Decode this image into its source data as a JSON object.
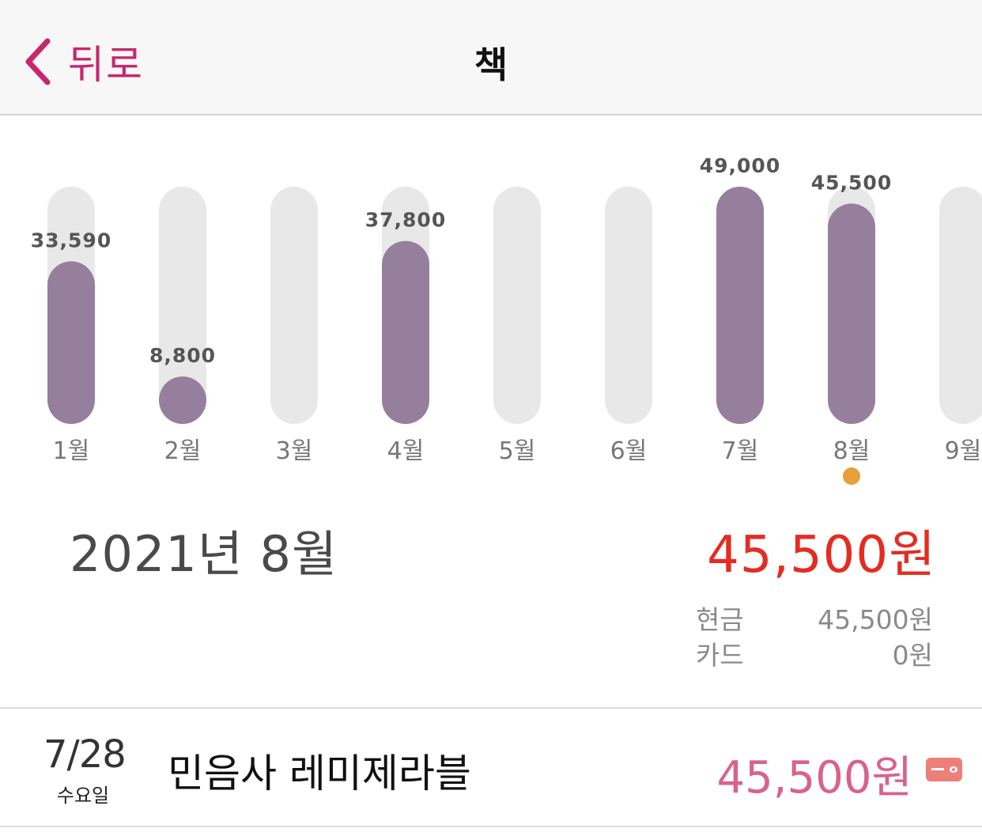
{
  "nav": {
    "back_label": "뒤로",
    "title": "책",
    "accent_color": "#c8266e"
  },
  "chart_data": {
    "type": "bar",
    "categories": [
      "1월",
      "2월",
      "3월",
      "4월",
      "5월",
      "6월",
      "7월",
      "8월",
      "9월"
    ],
    "values": [
      33590,
      8800,
      0,
      37800,
      0,
      0,
      49000,
      45500,
      0
    ],
    "value_labels": [
      "33,590",
      "8,800",
      "",
      "37,800",
      "",
      "",
      "49,000",
      "45,500",
      ""
    ],
    "ylim": [
      0,
      49000
    ],
    "selected_index": 7,
    "bar_color": "#967f9c",
    "track_color": "#e8e8e8",
    "selected_dot_color": "#e8a03a",
    "grid": false
  },
  "summary": {
    "month_label": "2021년 8월",
    "total": "45,500원",
    "total_color": "#e32d22",
    "breakdown": [
      {
        "label": "현금",
        "value": "45,500원"
      },
      {
        "label": "카드",
        "value": "0원"
      }
    ]
  },
  "transactions": [
    {
      "date": "7/28",
      "weekday": "수요일",
      "title": "민음사 레미제라블",
      "amount": "45,500원",
      "amount_color": "#d8638a",
      "payment_icon": "card-icon"
    }
  ]
}
